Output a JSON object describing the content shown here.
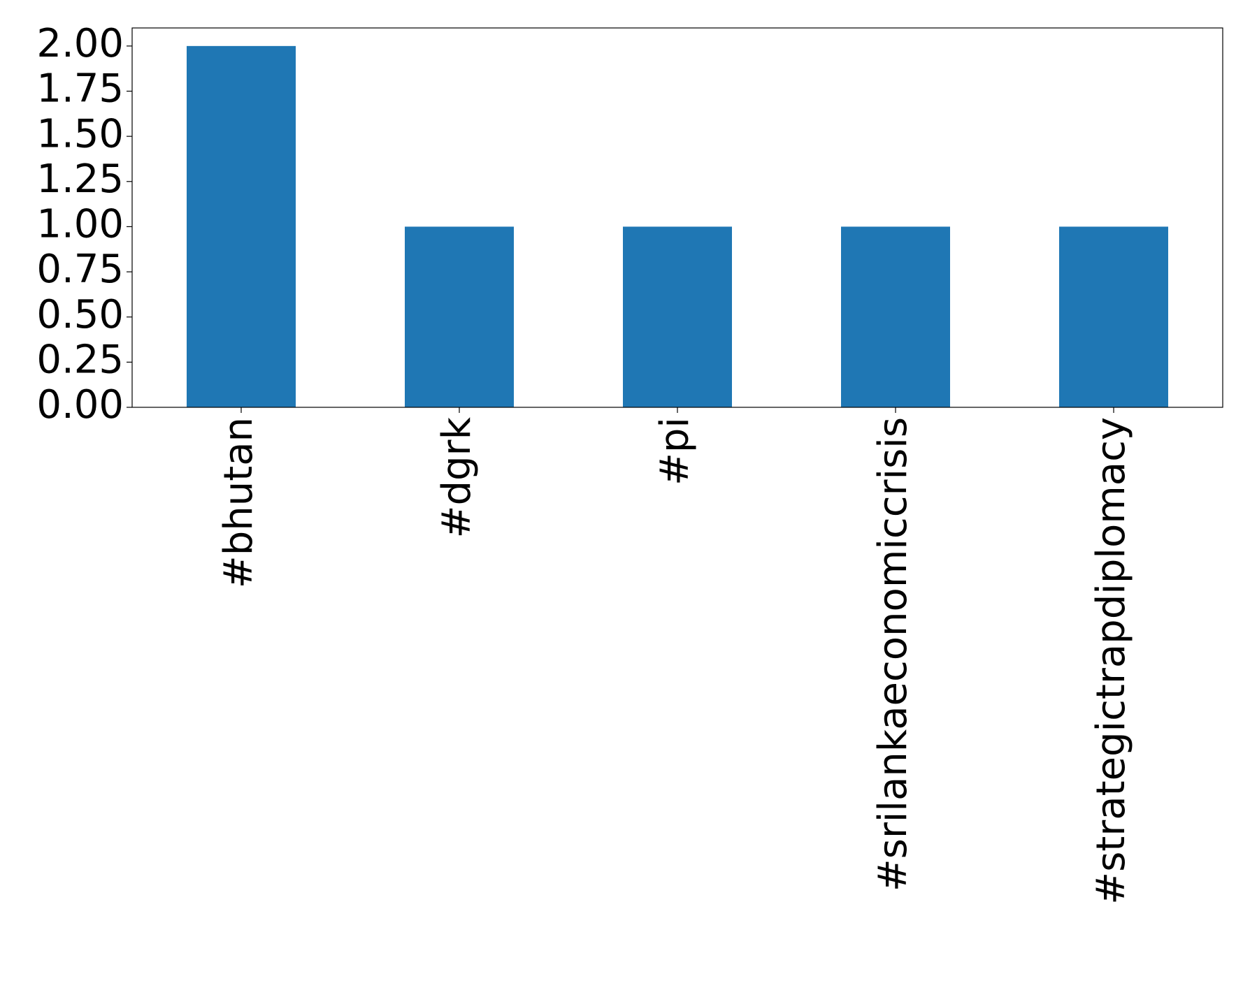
{
  "chart_data": {
    "type": "bar",
    "categories": [
      "#bhutan",
      "#dgrk",
      "#pi",
      "#srilankaeconomiccrisis",
      "#strategictrapdiplomacy"
    ],
    "values": [
      2,
      1,
      1,
      1,
      1
    ],
    "color": "#1f77b4",
    "ylim": [
      0,
      2.1
    ],
    "yticks": [
      {
        "value": 0,
        "label": "0.00"
      },
      {
        "value": 0.25,
        "label": "0.25"
      },
      {
        "value": 0.5,
        "label": "0.50"
      },
      {
        "value": 0.75,
        "label": "0.75"
      },
      {
        "value": 1,
        "label": "1.00"
      },
      {
        "value": 1.25,
        "label": "1.25"
      },
      {
        "value": 1.5,
        "label": "1.50"
      },
      {
        "value": 1.75,
        "label": "1.75"
      },
      {
        "value": 2,
        "label": "2.00"
      }
    ],
    "grid": false
  }
}
